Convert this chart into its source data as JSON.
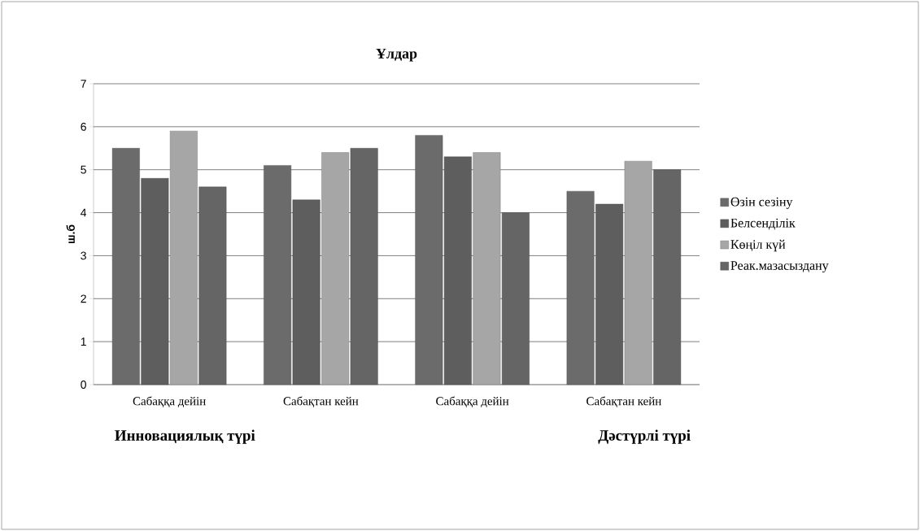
{
  "chart_data": {
    "type": "bar",
    "title": "Ұлдар",
    "ylabel": "ш.б",
    "categories": [
      "Сабаққа дейін",
      "Сабақтан кейн",
      "Сабаққа дейін",
      "Сабақтан кейн"
    ],
    "series": [
      {
        "name": "Өзін сезіну",
        "color": "#6b6b6b",
        "values": [
          5.5,
          5.1,
          5.8,
          4.5
        ]
      },
      {
        "name": "Белсенділік",
        "color": "#5e5e5e",
        "values": [
          4.8,
          4.3,
          5.3,
          4.2
        ]
      },
      {
        "name": "Көңіл күй",
        "color": "#a6a6a6",
        "values": [
          5.9,
          5.4,
          5.4,
          5.2
        ]
      },
      {
        "name": "Реак.мазасыздану",
        "color": "#656565",
        "values": [
          4.6,
          5.5,
          4.0,
          5.0
        ]
      }
    ],
    "ylim": [
      0,
      7
    ],
    "yticks": [
      0,
      1,
      2,
      3,
      4,
      5,
      6,
      7
    ],
    "grid": "y",
    "legend": "right",
    "annotations": [
      "Инновациялық түрі",
      "Дәстүрлі түрі"
    ]
  }
}
